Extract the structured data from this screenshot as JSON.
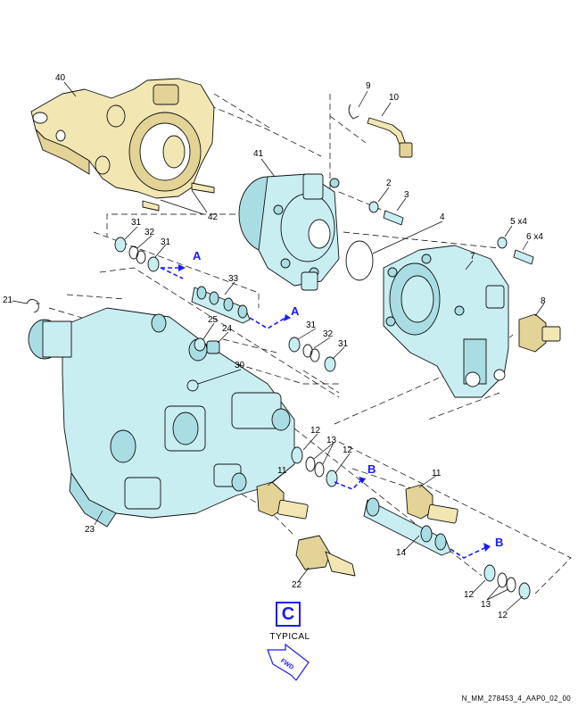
{
  "figure": {
    "callouts": {
      "p2": "2",
      "p3": "3",
      "p4": "4",
      "p5": "5 x4",
      "p6": "6 x4",
      "p7": "7",
      "p8": "8",
      "p9": "9",
      "p10": "10",
      "p11a": "11",
      "p11b": "11",
      "p12a": "12",
      "p12b": "12",
      "p12c": "12",
      "p12d": "12",
      "p13a": "13",
      "p13b": "13",
      "p14": "14",
      "p21": "21",
      "p22": "22",
      "p23": "23",
      "p24": "24",
      "p25": "25",
      "p30": "30",
      "p31a": "31",
      "p31b": "31",
      "p31c": "31",
      "p31d": "31",
      "p32a": "32",
      "p32b": "32",
      "p33": "33",
      "p40": "40",
      "p41": "41",
      "p42": "42"
    },
    "flow_markers": {
      "a1": "A",
      "a2": "A",
      "b1": "B",
      "b2": "B"
    },
    "view_marker": "C",
    "view_caption": "TYPICAL",
    "direction_arrow": "FWD",
    "document_id": "N_MM_278453_4_AAP0_02_00"
  },
  "colors": {
    "housing": "#c8eef2",
    "bracket": "#f2e6b3",
    "flow_arrow": "#1a1aff",
    "line": "#111111"
  }
}
